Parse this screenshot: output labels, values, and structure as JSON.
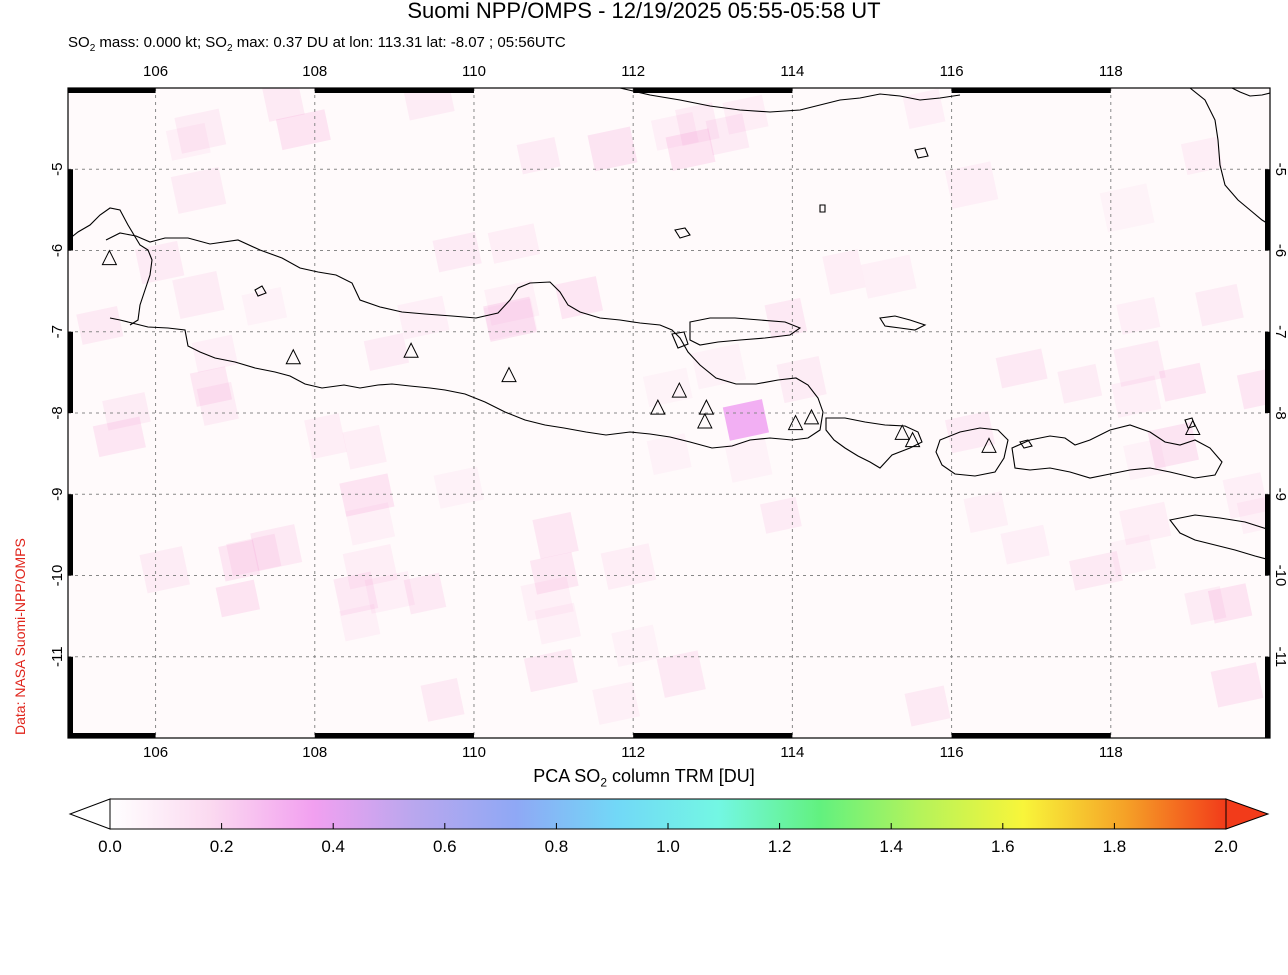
{
  "title": "Suomi NPP/OMPS - 12/19/2025 05:55-05:58 UT",
  "subtitle": {
    "prefix": "SO",
    "sub1": "2",
    "middle": " mass: 0.000 kt; SO",
    "sub2": "2",
    "rest": " max: 0.37 DU at lon: 113.31 lat: -8.07 ; 05:56UTC"
  },
  "credit": "Data: NASA Suomi-NPP/OMPS",
  "map": {
    "lon_range": [
      104.9,
      120.0
    ],
    "lat_range": [
      -12.0,
      -4.0
    ],
    "lon_ticks": [
      "106",
      "108",
      "110",
      "112",
      "114",
      "116",
      "118"
    ],
    "lat_ticks": [
      "-5",
      "-6",
      "-7",
      "-8",
      "-9",
      "-10",
      "-11"
    ],
    "grid": true,
    "coastline_color": "#000000",
    "volcano_marker": "triangle-icon",
    "volcanoes": [
      {
        "lon": 105.42,
        "lat": -6.1
      },
      {
        "lon": 107.73,
        "lat": -7.32
      },
      {
        "lon": 109.21,
        "lat": -7.24
      },
      {
        "lon": 110.44,
        "lat": -7.54
      },
      {
        "lon": 112.31,
        "lat": -7.94
      },
      {
        "lon": 112.58,
        "lat": -7.73
      },
      {
        "lon": 112.92,
        "lat": -7.94
      },
      {
        "lon": 112.9,
        "lat": -8.11
      },
      {
        "lon": 114.04,
        "lat": -8.13
      },
      {
        "lon": 114.24,
        "lat": -8.06
      },
      {
        "lon": 115.38,
        "lat": -8.25
      },
      {
        "lon": 115.51,
        "lat": -8.34
      },
      {
        "lon": 116.47,
        "lat": -8.41
      },
      {
        "lon": 119.03,
        "lat": -8.19
      }
    ],
    "max_location": {
      "lon": 113.31,
      "lat": -8.07,
      "value": 0.37
    }
  },
  "colorbar": {
    "label_prefix": "PCA SO",
    "label_sub": "2",
    "label_suffix": " column TRM [DU]",
    "ticks": [
      "0.0",
      "0.2",
      "0.4",
      "0.6",
      "0.8",
      "1.0",
      "1.2",
      "1.4",
      "1.6",
      "1.8",
      "2.0"
    ],
    "range": [
      0.0,
      2.0
    ],
    "stops": [
      "#ffffff",
      "#fbd9f0",
      "#f2a0f0",
      "#b9a7ee",
      "#8fa8f5",
      "#72d8f7",
      "#73f7e3",
      "#62f17f",
      "#b6f35a",
      "#f8f53a",
      "#f5a227",
      "#f23b1a"
    ]
  }
}
